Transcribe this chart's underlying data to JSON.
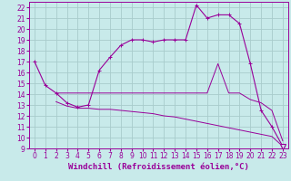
{
  "xlabel": "Windchill (Refroidissement éolien,°C)",
  "bg_color": "#c8eaea",
  "grid_color": "#a8cccc",
  "line_color": "#990099",
  "xlim": [
    -0.5,
    23.5
  ],
  "ylim": [
    9,
    22.5
  ],
  "yticks": [
    9,
    10,
    11,
    12,
    13,
    14,
    15,
    16,
    17,
    18,
    19,
    20,
    21,
    22
  ],
  "xticks": [
    0,
    1,
    2,
    3,
    4,
    5,
    6,
    7,
    8,
    9,
    10,
    11,
    12,
    13,
    14,
    15,
    16,
    17,
    18,
    19,
    20,
    21,
    22,
    23
  ],
  "curve1_x": [
    0,
    1,
    2,
    3,
    4,
    5,
    6,
    7,
    8,
    9,
    10,
    11,
    12,
    13,
    14,
    15,
    16,
    17,
    18,
    19,
    20,
    21,
    22,
    23
  ],
  "curve1_y": [
    17.0,
    14.8,
    14.1,
    13.2,
    12.8,
    13.0,
    16.2,
    17.4,
    18.5,
    19.0,
    19.0,
    18.8,
    19.0,
    19.0,
    19.0,
    22.2,
    21.0,
    21.3,
    21.3,
    20.5,
    16.8,
    12.5,
    11.0,
    9.2
  ],
  "curve2_x": [
    2,
    3,
    4,
    5,
    6,
    7,
    8,
    9,
    10,
    11,
    12,
    13,
    14,
    15,
    16,
    17,
    18,
    19,
    20,
    21,
    22,
    23
  ],
  "curve2_y": [
    14.1,
    14.1,
    14.1,
    14.1,
    14.1,
    14.1,
    14.1,
    14.1,
    14.1,
    14.1,
    14.1,
    14.1,
    14.1,
    14.1,
    14.1,
    16.8,
    14.1,
    14.1,
    13.5,
    13.2,
    12.5,
    9.7
  ],
  "curve3_x": [
    2,
    3,
    4,
    5,
    6,
    7,
    8,
    9,
    10,
    11,
    12,
    13,
    14,
    15,
    16,
    17,
    18,
    19,
    20,
    21,
    22,
    23
  ],
  "curve3_y": [
    13.3,
    12.9,
    12.7,
    12.7,
    12.6,
    12.6,
    12.5,
    12.4,
    12.3,
    12.2,
    12.0,
    11.9,
    11.7,
    11.5,
    11.3,
    11.1,
    10.9,
    10.7,
    10.5,
    10.3,
    10.1,
    9.2
  ],
  "font_color": "#990099",
  "tick_font_size": 5.5,
  "label_font_size": 6.5
}
